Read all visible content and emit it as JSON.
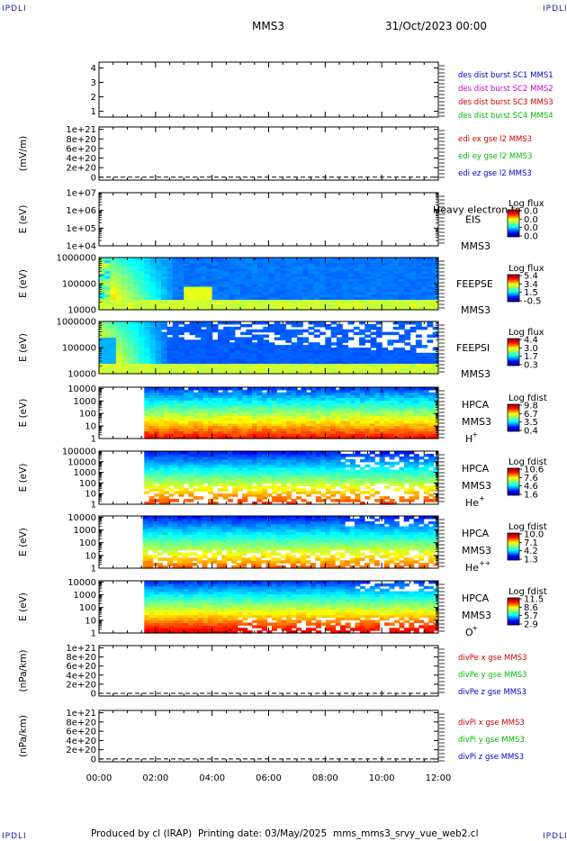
{
  "corner_label": "IPDLI",
  "header": {
    "spacecraft": "MMS3",
    "datetime": "31/Oct/2023 00:00"
  },
  "footer": {
    "produced_by": "Produced by cl (IRAP)",
    "printing_date": "Printing date: 03/May/2025",
    "file_name": "mms_mms3_srvy_vue_web2.cl"
  },
  "colors": {
    "red": "#cc0000",
    "green": "#00bb00",
    "blue": "#0000cc",
    "magenta": "#cc00cc",
    "dashed_line": "#000000"
  },
  "chart_data": {
    "type": "heatmap",
    "x_axis": {
      "ticks": [
        "00:00",
        "02:00",
        "04:00",
        "06:00",
        "08:00",
        "10:00",
        "12:00"
      ],
      "range_hours": [
        0,
        12
      ]
    },
    "panels": [
      {
        "id": "dist-burst",
        "kind": "lines",
        "yticks": [
          "4",
          "3",
          "2",
          "1"
        ],
        "ytick_values": [
          4,
          3,
          2,
          1
        ],
        "ylim": [
          0.6,
          4.4
        ],
        "ylabel": "",
        "legend": [
          {
            "text": "des dist burst SC1 MMS1",
            "color": "#0000cc"
          },
          {
            "text": "des dist burst SC2 MMS2",
            "color": "#cc00cc"
          },
          {
            "text": "des dist burst SC3 MMS3",
            "color": "#cc0000"
          },
          {
            "text": "des dist burst SC4 MMS4",
            "color": "#00bb00"
          }
        ]
      },
      {
        "id": "edi-e",
        "kind": "lines",
        "yticks": [
          "1e+21",
          "8e+20",
          "6e+20",
          "4e+20",
          "2e+20",
          "0"
        ],
        "ytick_values": [
          1.0,
          0.8,
          0.6,
          0.4,
          0.2,
          0
        ],
        "ylim": [
          -0.06,
          1.05
        ],
        "zero_line": true,
        "ylabel": "(mV/m)",
        "legend": [
          {
            "text": "edi ex gse l2 MMS3",
            "color": "#cc0000"
          },
          {
            "text": "edi ey gse l2 MMS3",
            "color": "#00bb00"
          },
          {
            "text": "edi ez gse l2 MMS3",
            "color": "#0000cc"
          }
        ]
      },
      {
        "id": "eis",
        "kind": "spectrogram",
        "yticks": [
          "1e+07",
          "1e+06",
          "1e+05",
          "1e+04"
        ],
        "ytick_values": [
          7,
          6,
          5,
          4
        ],
        "ylim": [
          4,
          7
        ],
        "ylabel": "E (eV)",
        "instrument": [
          "EIS",
          "MMS3"
        ],
        "overlay_text": "Heavy electron to",
        "cbar_title": "Log flux",
        "cbar_ticks": [
          "0.0",
          "0.0",
          "0.0",
          "0.0"
        ],
        "has_data": false
      },
      {
        "id": "feepse",
        "kind": "spectrogram",
        "yticks": [
          "1000000",
          "100000",
          "10000"
        ],
        "ytick_values": [
          6,
          5,
          4
        ],
        "ylim": [
          4,
          6
        ],
        "ylabel": "E (eV)",
        "instrument": [
          "FEEPSE",
          "MMS3"
        ],
        "cbar_title": "Log flux",
        "cbar_ticks": [
          "5.4",
          "3.4",
          "1.5",
          "-0.5"
        ],
        "has_data": true,
        "data_start_hours": 0.0
      },
      {
        "id": "feepsi",
        "kind": "spectrogram",
        "yticks": [
          "1000000",
          "100000",
          "10000"
        ],
        "ytick_values": [
          6,
          5,
          4
        ],
        "ylim": [
          4,
          6
        ],
        "ylabel": "E (eV)",
        "instrument": [
          "FEEPSI",
          "MMS3"
        ],
        "cbar_title": "Log flux",
        "cbar_ticks": [
          "4.4",
          "3.0",
          "1.7",
          "0.3"
        ],
        "has_data": true,
        "data_start_hours": 0.0
      },
      {
        "id": "hpca-h",
        "kind": "spectrogram",
        "yticks": [
          "10000",
          "1000",
          "100",
          "10",
          "1"
        ],
        "ytick_values": [
          4,
          3,
          2,
          1,
          0
        ],
        "ylim": [
          0,
          4.1
        ],
        "ylabel": "E (eV)",
        "instrument": [
          "HPCA",
          "MMS3"
        ],
        "species": "H",
        "species_charge": "+",
        "cbar_title": "Log fdist",
        "cbar_ticks": [
          "9.8",
          "6.7",
          "3.5",
          "0.4"
        ],
        "has_data": true,
        "data_start_hours": 1.6
      },
      {
        "id": "hpca-he",
        "kind": "spectrogram",
        "yticks": [
          "100000",
          "10000",
          "1000",
          "100",
          "10",
          "1"
        ],
        "ytick_values": [
          5,
          4,
          3,
          2,
          1,
          0
        ],
        "ylim": [
          0,
          5
        ],
        "ylabel": "E (eV)",
        "instrument": [
          "HPCA",
          "MMS3"
        ],
        "species": "He",
        "species_charge": "+",
        "cbar_title": "Log fdist",
        "cbar_ticks": [
          "10.6",
          "7.6",
          "4.6",
          "1.6"
        ],
        "has_data": true,
        "data_start_hours": 1.6
      },
      {
        "id": "hpca-he2",
        "kind": "spectrogram",
        "yticks": [
          "10000",
          "1000",
          "100",
          "10",
          "1"
        ],
        "ytick_values": [
          4,
          3,
          2,
          1,
          0
        ],
        "ylim": [
          0,
          4.1
        ],
        "ylabel": "E (eV)",
        "instrument": [
          "HPCA",
          "MMS3"
        ],
        "species": "He",
        "species_charge": "++",
        "cbar_title": "Log fdist",
        "cbar_ticks": [
          "10.0",
          "7.1",
          "4.2",
          "1.3"
        ],
        "has_data": true,
        "data_start_hours": 1.55
      },
      {
        "id": "hpca-o",
        "kind": "spectrogram",
        "yticks": [
          "10000",
          "1000",
          "100",
          "10",
          "1"
        ],
        "ytick_values": [
          4,
          3,
          2,
          1,
          0
        ],
        "ylim": [
          0,
          4.1
        ],
        "ylabel": "E (eV)",
        "instrument": [
          "HPCA",
          "MMS3"
        ],
        "species": "O",
        "species_charge": "+",
        "cbar_title": "Log fdist",
        "cbar_ticks": [
          "11.5",
          "8.6",
          "5.7",
          "2.9"
        ],
        "has_data": true,
        "data_start_hours": 1.6
      },
      {
        "id": "divpe",
        "kind": "lines",
        "yticks": [
          "1e+21",
          "8e+20",
          "6e+20",
          "4e+20",
          "2e+20",
          "0"
        ],
        "ytick_values": [
          1.0,
          0.8,
          0.6,
          0.4,
          0.2,
          0
        ],
        "ylim": [
          -0.06,
          1.05
        ],
        "zero_line": true,
        "ylabel": "(nPa/km)",
        "legend": [
          {
            "text": "divPe x gse MMS3",
            "color": "#cc0000"
          },
          {
            "text": "divPe y gse MMS3",
            "color": "#00bb00"
          },
          {
            "text": "divPe z gse MMS3",
            "color": "#0000cc"
          }
        ]
      },
      {
        "id": "divpi",
        "kind": "lines",
        "yticks": [
          "1e+21",
          "8e+20",
          "6e+20",
          "4e+20",
          "2e+20",
          "0"
        ],
        "ytick_values": [
          1.0,
          0.8,
          0.6,
          0.4,
          0.2,
          0
        ],
        "ylim": [
          -0.06,
          1.05
        ],
        "zero_line": true,
        "ylabel": "(nPa/km)",
        "legend": [
          {
            "text": "divPi x gse MMS3",
            "color": "#cc0000"
          },
          {
            "text": "divPi y gse MMS3",
            "color": "#00bb00"
          },
          {
            "text": "divPi z gse MMS3",
            "color": "#0000cc"
          }
        ]
      }
    ]
  }
}
